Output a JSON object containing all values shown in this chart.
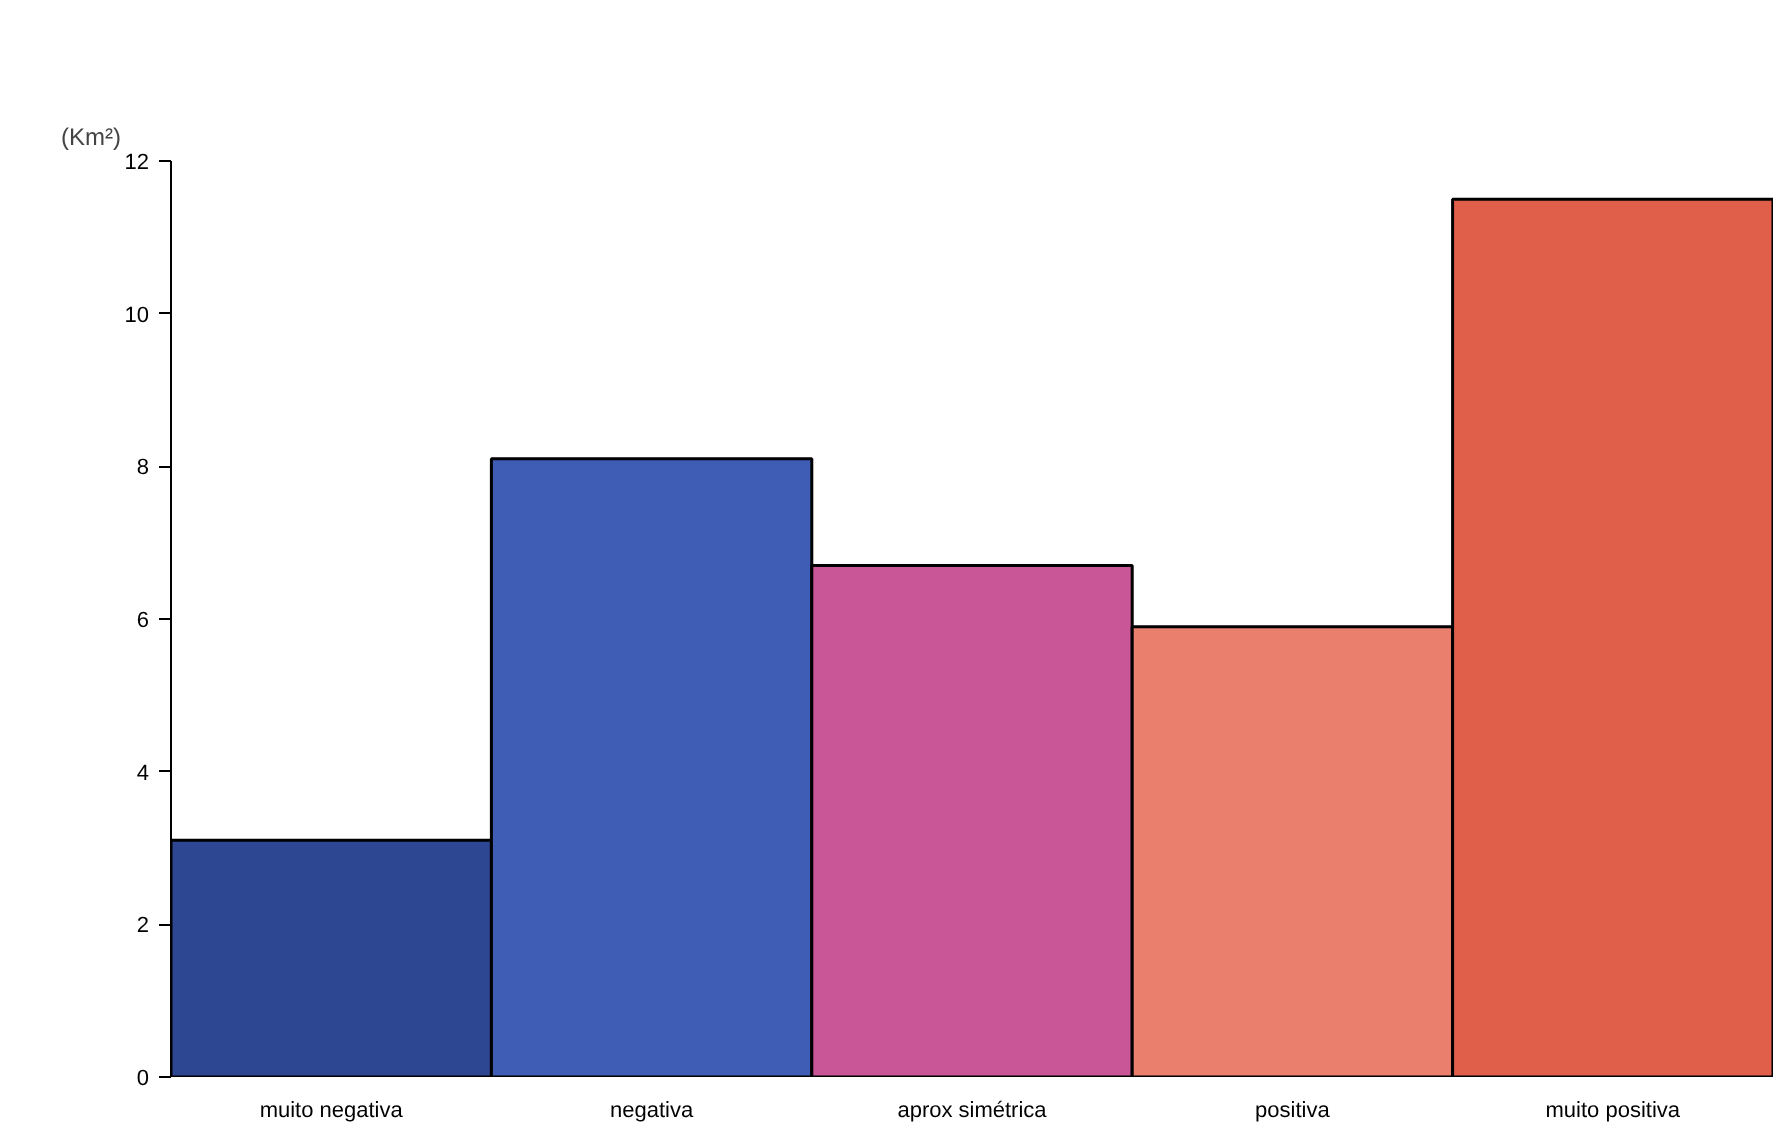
{
  "chart_data": {
    "type": "bar",
    "ylabel": "(Km²)",
    "categories": [
      "muito negativa",
      "negativa",
      "aprox simétrica",
      "positiva",
      "muito positiva"
    ],
    "values": [
      3.1,
      8.1,
      6.7,
      5.9,
      11.5
    ],
    "colors": [
      "#2e4792",
      "#3f5db5",
      "#c95697",
      "#e97f6c",
      "#df5f4a"
    ],
    "ylim": [
      0,
      12
    ],
    "yticks": [
      0,
      2,
      4,
      6,
      8,
      10,
      12
    ],
    "grid": false
  }
}
